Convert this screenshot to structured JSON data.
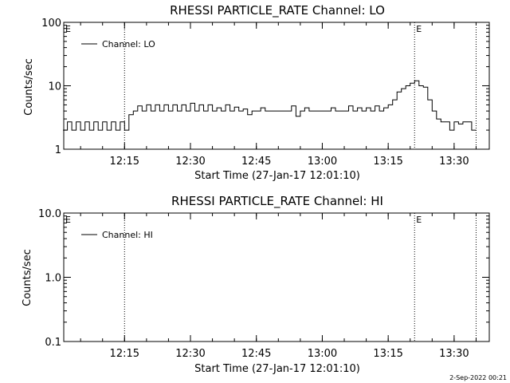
{
  "footer": {
    "timestamp": "2-Sep-2022 00:21"
  },
  "chart_data": [
    {
      "type": "line",
      "title": "RHESSI PARTICLE_RATE Channel: LO",
      "xlabel": "Start Time (27-Jan-17 12:01:10)",
      "ylabel": "Counts/sec",
      "yscale": "log",
      "ylim": [
        1,
        100
      ],
      "yticks": [
        1,
        10,
        100
      ],
      "ytick_labels": [
        "1",
        "10",
        "100"
      ],
      "xlim": [
        "12:01:10",
        "13:38:00"
      ],
      "xticks": [
        "12:15",
        "12:30",
        "12:45",
        "13:00",
        "13:15",
        "13:30"
      ],
      "xtick_labels": [
        "12:15",
        "12:30",
        "12:45",
        "13:00",
        "13:15",
        "13:30"
      ],
      "marker_lines": [
        {
          "time": "12:15",
          "label": ""
        },
        {
          "time": "13:21",
          "label": "E"
        },
        {
          "time": "13:35",
          "label": ""
        }
      ],
      "left_marker_label": "E",
      "legend": {
        "position": "top-left",
        "entries": [
          "Channel: LO"
        ]
      },
      "series": [
        {
          "name": "Channel: LO",
          "x": [
            "12:01",
            "12:02",
            "12:03",
            "12:04",
            "12:05",
            "12:06",
            "12:07",
            "12:08",
            "12:09",
            "12:10",
            "12:11",
            "12:12",
            "12:13",
            "12:14",
            "12:15",
            "12:16",
            "12:17",
            "12:18",
            "12:19",
            "12:20",
            "12:21",
            "12:22",
            "12:23",
            "12:24",
            "12:25",
            "12:26",
            "12:27",
            "12:28",
            "12:29",
            "12:30",
            "12:31",
            "12:32",
            "12:33",
            "12:34",
            "12:35",
            "12:36",
            "12:37",
            "12:38",
            "12:39",
            "12:40",
            "12:41",
            "12:42",
            "12:43",
            "12:44",
            "12:45",
            "12:46",
            "12:47",
            "12:48",
            "12:49",
            "12:50",
            "12:51",
            "12:52",
            "12:53",
            "12:54",
            "12:55",
            "12:56",
            "12:57",
            "12:58",
            "12:59",
            "13:00",
            "13:01",
            "13:02",
            "13:03",
            "13:04",
            "13:05",
            "13:06",
            "13:07",
            "13:08",
            "13:09",
            "13:10",
            "13:11",
            "13:12",
            "13:13",
            "13:14",
            "13:15",
            "13:16",
            "13:17",
            "13:18",
            "13:19",
            "13:20",
            "13:21",
            "13:22",
            "13:23",
            "13:24",
            "13:25",
            "13:26",
            "13:27",
            "13:28",
            "13:29",
            "13:30",
            "13:31",
            "13:32",
            "13:33",
            "13:34",
            "13:35"
          ],
          "y": [
            2,
            2.7,
            2,
            2.7,
            2,
            2.7,
            2,
            2.7,
            2,
            2.7,
            2,
            2.7,
            2,
            2.7,
            2,
            3.5,
            4,
            4.8,
            4,
            5,
            4,
            5,
            4,
            5,
            4,
            5,
            4,
            5,
            4,
            5.3,
            4,
            5,
            4,
            5,
            4,
            4.5,
            4,
            5,
            4,
            4.6,
            4,
            4.3,
            3.5,
            4,
            4,
            4.5,
            4,
            4,
            4,
            4,
            4,
            4,
            4.8,
            3.3,
            4,
            4.5,
            4,
            4,
            4,
            4,
            4,
            4.5,
            4,
            4,
            4,
            4.8,
            4,
            4.5,
            4,
            4.5,
            4,
            4.8,
            4,
            4.5,
            5,
            6,
            8,
            9,
            10,
            11,
            12,
            10,
            9.5,
            6,
            4,
            3,
            2.7,
            2.7,
            2,
            2.7,
            2.5,
            2.7,
            2.7,
            2,
            2
          ]
        }
      ]
    },
    {
      "type": "line",
      "title": "RHESSI PARTICLE_RATE Channel: HI",
      "xlabel": "Start Time (27-Jan-17 12:01:10)",
      "ylabel": "Counts/sec",
      "yscale": "log",
      "ylim": [
        0.1,
        10
      ],
      "yticks": [
        0.1,
        1,
        10
      ],
      "ytick_labels": [
        "0.1",
        "1.0",
        "10.0"
      ],
      "xlim": [
        "12:01:10",
        "13:38:00"
      ],
      "xticks": [
        "12:15",
        "12:30",
        "12:45",
        "13:00",
        "13:15",
        "13:30"
      ],
      "xtick_labels": [
        "12:15",
        "12:30",
        "12:45",
        "13:00",
        "13:15",
        "13:30"
      ],
      "marker_lines": [
        {
          "time": "12:15",
          "label": ""
        },
        {
          "time": "13:21",
          "label": "E"
        },
        {
          "time": "13:35",
          "label": ""
        }
      ],
      "left_marker_label": "E",
      "legend": {
        "position": "top-left",
        "entries": [
          "Channel: HI"
        ]
      },
      "series": [
        {
          "name": "Channel: HI",
          "x": [],
          "y": []
        }
      ]
    }
  ]
}
